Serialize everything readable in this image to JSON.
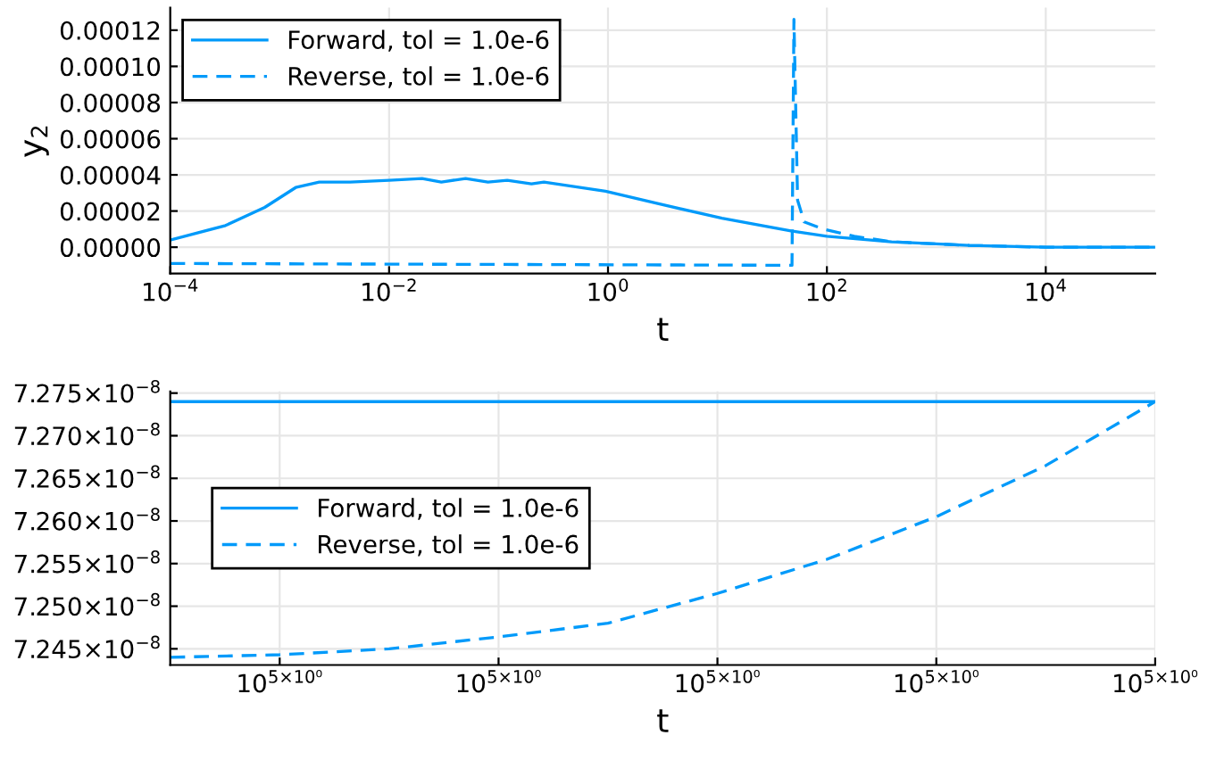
{
  "chart_data": [
    {
      "type": "line",
      "xlabel": "t",
      "ylabel": "y$_{2}$",
      "log": "x",
      "grid": true,
      "legend": "top left",
      "xlim": [
        0.0001,
        100000
      ],
      "xticks": [
        {
          "value": 0.0001,
          "label": "10$^{−4}$"
        },
        {
          "value": 0.01,
          "label": "10$^{−2}$"
        },
        {
          "value": 1,
          "label": "10$^{0}$"
        },
        {
          "value": 100,
          "label": "10$^{2}$"
        },
        {
          "value": 10000,
          "label": "10$^{4}$"
        }
      ],
      "ylim": [
        -1.46e-05,
        0.0001325
      ],
      "yticks": [
        {
          "value": 0,
          "label": "0.00000"
        },
        {
          "value": 2e-05,
          "label": "0.00002"
        },
        {
          "value": 4e-05,
          "label": "0.00004"
        },
        {
          "value": 6e-05,
          "label": "0.00006"
        },
        {
          "value": 8e-05,
          "label": "0.00008"
        },
        {
          "value": 0.0001,
          "label": "0.00010"
        },
        {
          "value": 0.00012,
          "label": "0.00012"
        }
      ],
      "series": [
        {
          "name": "Forward, tol = 1.0e-6",
          "color": "#009afa",
          "line_style": "solid",
          "x": [
            0.0001,
            0.00032,
            0.00073,
            0.0014,
            0.0023,
            0.0044,
            0.01,
            0.02,
            0.03,
            0.05,
            0.08,
            0.12,
            0.2,
            0.26,
            0.95,
            2.9,
            11,
            47,
            100,
            390,
            2000,
            10000,
            100000
          ],
          "values": [
            4e-06,
            1.2e-05,
            2.2e-05,
            3.3e-05,
            3.6e-05,
            3.6e-05,
            3.7e-05,
            3.8e-05,
            3.6e-05,
            3.8e-05,
            3.6e-05,
            3.7e-05,
            3.5e-05,
            3.6e-05,
            3.1e-05,
            2.4e-05,
            1.6e-05,
            9e-06,
            6e-06,
            3e-06,
            1e-06,
            0,
            0
          ]
        },
        {
          "name": "Reverse, tol = 1.0e-6",
          "color": "#009afa",
          "line_style": "dashed",
          "x": [
            0.0001,
            48,
            50,
            54,
            62,
            93,
            178,
            390,
            2000,
            10000,
            100000
          ],
          "values": [
            -9e-06,
            -1e-05,
            0.000126,
            2.6e-05,
            1.4e-05,
            1e-05,
            6e-06,
            3e-06,
            1e-06,
            0,
            0
          ]
        }
      ]
    },
    {
      "type": "line",
      "xlabel": "t",
      "grid": true,
      "legend": "left",
      "categories": [
        null,
        "10$^{5×10⁰}$",
        null,
        "10$^{5×10⁰}$",
        null,
        "10$^{5×10⁰}$",
        null,
        "10$^{5×10⁰}$",
        null,
        "10$^{5×10⁰}$"
      ],
      "ylim": [
        7.2431e-08,
        7.2752e-08
      ],
      "yticks": [
        {
          "value": 7.245e-08,
          "label": "7.245×10$^{−8}$"
        },
        {
          "value": 7.25e-08,
          "label": "7.250×10$^{−8}$"
        },
        {
          "value": 7.255e-08,
          "label": "7.255×10$^{−8}$"
        },
        {
          "value": 7.26e-08,
          "label": "7.260×10$^{−8}$"
        },
        {
          "value": 7.265e-08,
          "label": "7.265×10$^{−8}$"
        },
        {
          "value": 7.27e-08,
          "label": "7.270×10$^{−8}$"
        },
        {
          "value": 7.275e-08,
          "label": "7.275×10$^{−8}$"
        }
      ],
      "series": [
        {
          "name": "Forward, tol = 1.0e-6",
          "color": "#009afa",
          "line_style": "solid",
          "values": [
            7.274e-08,
            7.274e-08,
            7.274e-08,
            7.274e-08,
            7.274e-08,
            7.274e-08,
            7.274e-08,
            7.274e-08,
            7.274e-08,
            7.274e-08
          ]
        },
        {
          "name": "Reverse, tol = 1.0e-6",
          "color": "#009afa",
          "line_style": "dashed",
          "values": [
            7.244e-08,
            7.2443e-08,
            7.245e-08,
            7.2464e-08,
            7.248e-08,
            7.2515e-08,
            7.2555e-08,
            7.2605e-08,
            7.2665e-08,
            7.274e-08
          ]
        }
      ]
    }
  ]
}
